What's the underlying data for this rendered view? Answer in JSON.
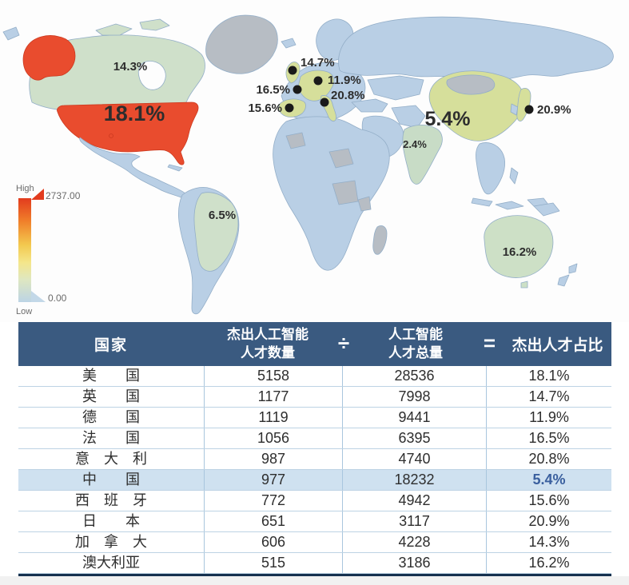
{
  "colors": {
    "usa_fill": "#e94c2e",
    "pale_green_fill": "#cfe0ca",
    "yellow_green_fill": "#d6df9b",
    "default_country_fill": "#b9cfe5",
    "no_data_fill": "#b7bdc4",
    "header_bg": "#3a5a80",
    "highlight_row_bg": "#cfe1f0",
    "highlight_pct_color": "#3a5f9e",
    "marker_dot_color": "#1a1a1a"
  },
  "map": {
    "legend": {
      "high_label": "High",
      "low_label": "Low",
      "max_value": "2737.00",
      "min_value": "0.00"
    },
    "labels": [
      {
        "id": "canada",
        "text": "14.3%"
      },
      {
        "id": "usa",
        "text": "18.1%"
      },
      {
        "id": "brazil",
        "text": "6.5%"
      },
      {
        "id": "uk",
        "text": "14.7%"
      },
      {
        "id": "germany",
        "text": "11.9%"
      },
      {
        "id": "france",
        "text": "16.5%"
      },
      {
        "id": "italy",
        "text": "20.8%"
      },
      {
        "id": "spain",
        "text": "15.6%"
      },
      {
        "id": "china",
        "text": "5.4%"
      },
      {
        "id": "india",
        "text": "2.4%"
      },
      {
        "id": "japan",
        "text": "20.9%"
      },
      {
        "id": "australia",
        "text": "16.2%"
      }
    ]
  },
  "table": {
    "header": {
      "country": "国家",
      "outstanding_line1": "杰出人工智能",
      "outstanding_line2": "人才数量",
      "divide_symbol": "÷",
      "total_line1": "人工智能",
      "total_line2": "人才总量",
      "equals_symbol": "=",
      "ratio": "杰出人才占比"
    },
    "rows": [
      {
        "country": "美　　国",
        "outstanding": "5158",
        "total": "28536",
        "ratio": "18.1%",
        "highlight": false
      },
      {
        "country": "英　　国",
        "outstanding": "1177",
        "total": "7998",
        "ratio": "14.7%",
        "highlight": false
      },
      {
        "country": "德　　国",
        "outstanding": "1119",
        "total": "9441",
        "ratio": "11.9%",
        "highlight": false
      },
      {
        "country": "法　　国",
        "outstanding": "1056",
        "total": "6395",
        "ratio": "16.5%",
        "highlight": false
      },
      {
        "country": "意　大　利",
        "outstanding": "987",
        "total": "4740",
        "ratio": "20.8%",
        "highlight": false
      },
      {
        "country": "中　　国",
        "outstanding": "977",
        "total": "18232",
        "ratio": "5.4%",
        "highlight": true
      },
      {
        "country": "西　班　牙",
        "outstanding": "772",
        "total": "4942",
        "ratio": "15.6%",
        "highlight": false
      },
      {
        "country": "日　　本",
        "outstanding": "651",
        "total": "3117",
        "ratio": "20.9%",
        "highlight": false
      },
      {
        "country": "加　拿　大",
        "outstanding": "606",
        "total": "4228",
        "ratio": "14.3%",
        "highlight": false
      },
      {
        "country": "澳大利亚",
        "outstanding": "515",
        "total": "3186",
        "ratio": "16.2%",
        "highlight": false
      }
    ]
  },
  "chart_data": [
    {
      "type": "heatmap",
      "subtype": "choropleth_world_map",
      "title": "",
      "legend": {
        "position": "left",
        "high_label": "High",
        "low_label": "Low",
        "max": 2737.0,
        "min": 0.0
      },
      "points": [
        {
          "country": "加拿大",
          "value_pct": 14.3
        },
        {
          "country": "美国",
          "value_pct": 18.1
        },
        {
          "country": "巴西",
          "value_pct": 6.5
        },
        {
          "country": "英国",
          "value_pct": 14.7
        },
        {
          "country": "德国",
          "value_pct": 11.9
        },
        {
          "country": "法国",
          "value_pct": 16.5
        },
        {
          "country": "西班牙",
          "value_pct": 15.6
        },
        {
          "country": "意大利",
          "value_pct": 20.8
        },
        {
          "country": "中国",
          "value_pct": 5.4
        },
        {
          "country": "印度",
          "value_pct": 2.4
        },
        {
          "country": "日本",
          "value_pct": 20.9
        },
        {
          "country": "澳大利亚",
          "value_pct": 16.2
        }
      ]
    },
    {
      "type": "table",
      "columns": [
        "国家",
        "杰出人工智能人才数量",
        "人工智能人才总量",
        "杰出人才占比"
      ],
      "rows": [
        [
          "美国",
          5158,
          28536,
          "18.1%"
        ],
        [
          "英国",
          1177,
          7998,
          "14.7%"
        ],
        [
          "德国",
          1119,
          9441,
          "11.9%"
        ],
        [
          "法国",
          1056,
          6395,
          "16.5%"
        ],
        [
          "意大利",
          987,
          4740,
          "20.8%"
        ],
        [
          "中国",
          977,
          18232,
          "5.4%"
        ],
        [
          "西班牙",
          772,
          4942,
          "15.6%"
        ],
        [
          "日本",
          651,
          3117,
          "20.9%"
        ],
        [
          "加拿大",
          606,
          4228,
          "14.3%"
        ],
        [
          "澳大利亚",
          515,
          3186,
          "16.2%"
        ]
      ],
      "highlighted_row": "中国"
    }
  ]
}
